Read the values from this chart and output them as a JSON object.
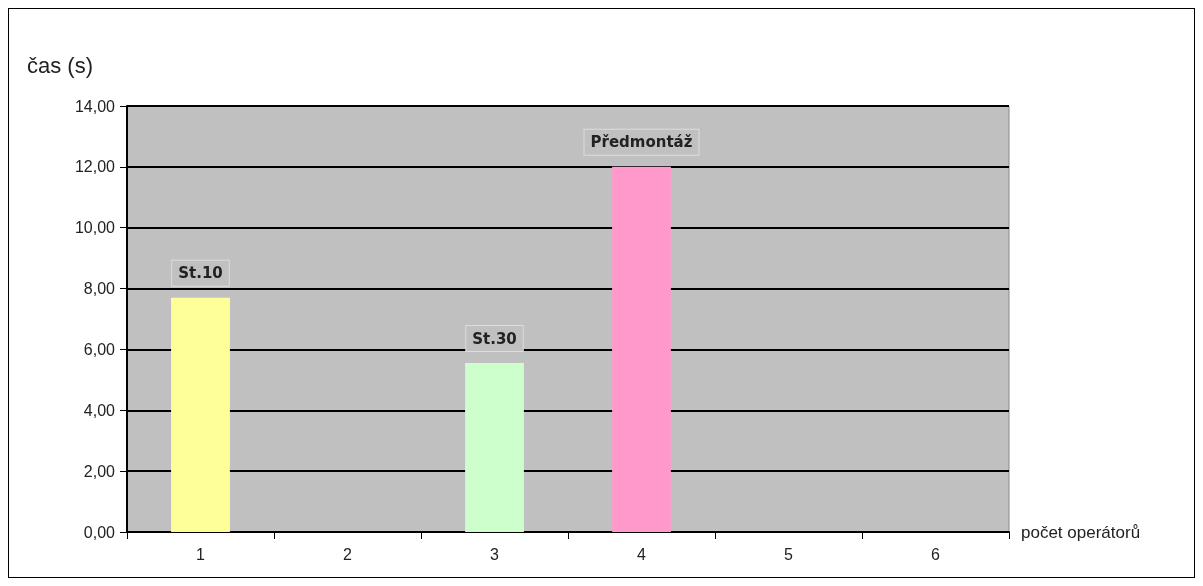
{
  "chart_data": {
    "type": "bar",
    "stacked": true,
    "ylabel": "čas (s)",
    "xlabel": "počet operátorů",
    "categories": [
      "1",
      "2",
      "3",
      "4",
      "5",
      "6"
    ],
    "series": [
      {
        "name": "St.10",
        "color": "#ffff99",
        "values": [
          7.7,
          null,
          null,
          null,
          null,
          null
        ]
      },
      {
        "name": "St.30",
        "color": "#ccffcc",
        "values": [
          null,
          null,
          5.55,
          null,
          null,
          null
        ]
      },
      {
        "name": "Předmontáž",
        "color": "#ff99cc",
        "values": [
          null,
          null,
          null,
          12.0,
          null,
          null
        ]
      }
    ],
    "ylim": [
      0,
      14
    ],
    "yticks": [
      {
        "value": 0,
        "label": "0,00"
      },
      {
        "value": 2,
        "label": "2,00"
      },
      {
        "value": 4,
        "label": "4,00"
      },
      {
        "value": 6,
        "label": "6,00"
      },
      {
        "value": 8,
        "label": "8,00"
      },
      {
        "value": 10,
        "label": "10,00"
      },
      {
        "value": 12,
        "label": "12,00"
      },
      {
        "value": 14,
        "label": "14,00"
      }
    ],
    "grid": "y",
    "legend": false
  }
}
